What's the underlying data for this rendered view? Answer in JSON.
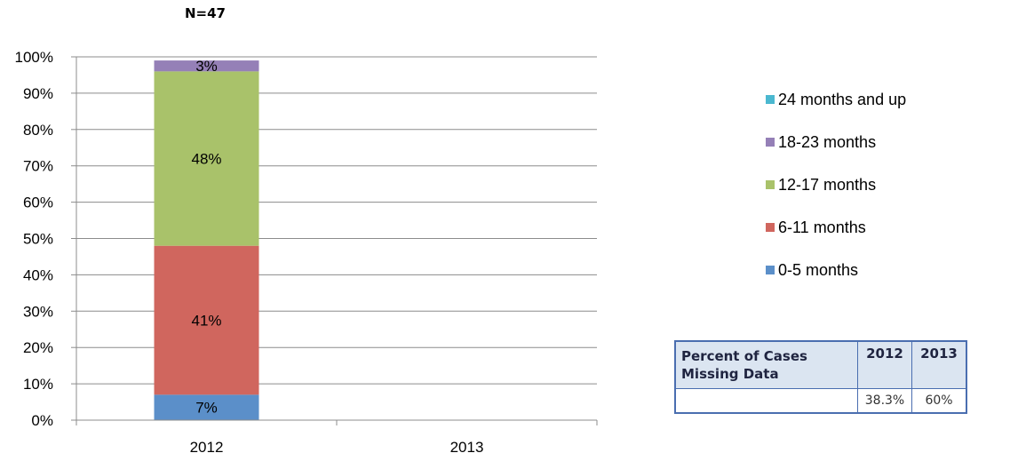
{
  "chart_data": {
    "type": "bar",
    "stacked": true,
    "percent_stacked": true,
    "note": "N=47",
    "categories": [
      "2012",
      "2013"
    ],
    "series": [
      {
        "name": "0-5 months",
        "color": "#5b8fc9",
        "values": [
          7,
          null
        ],
        "labels": [
          "7%",
          ""
        ]
      },
      {
        "name": "6-11 months",
        "color": "#d0665e",
        "values": [
          41,
          null
        ],
        "labels": [
          "41%",
          ""
        ]
      },
      {
        "name": "12-17 months",
        "color": "#a9c26a",
        "values": [
          48,
          null
        ],
        "labels": [
          "48%",
          ""
        ]
      },
      {
        "name": "18-23 months",
        "color": "#9580b7",
        "values": [
          3,
          null
        ],
        "labels": [
          "3%",
          ""
        ]
      },
      {
        "name": "24 months and up",
        "color": "#4bb8d0",
        "values": [
          0,
          null
        ],
        "labels": [
          "",
          ""
        ]
      }
    ],
    "yticks": [
      "0%",
      "10%",
      "20%",
      "30%",
      "40%",
      "50%",
      "60%",
      "70%",
      "80%",
      "90%",
      "100%"
    ],
    "ylim": [
      0,
      100
    ],
    "grid": true,
    "legend_position": "right"
  },
  "missing_table": {
    "header_label": "Percent of Cases Missing Data",
    "years": [
      "2012",
      "2013"
    ],
    "values": [
      "38.3%",
      "60%"
    ]
  }
}
